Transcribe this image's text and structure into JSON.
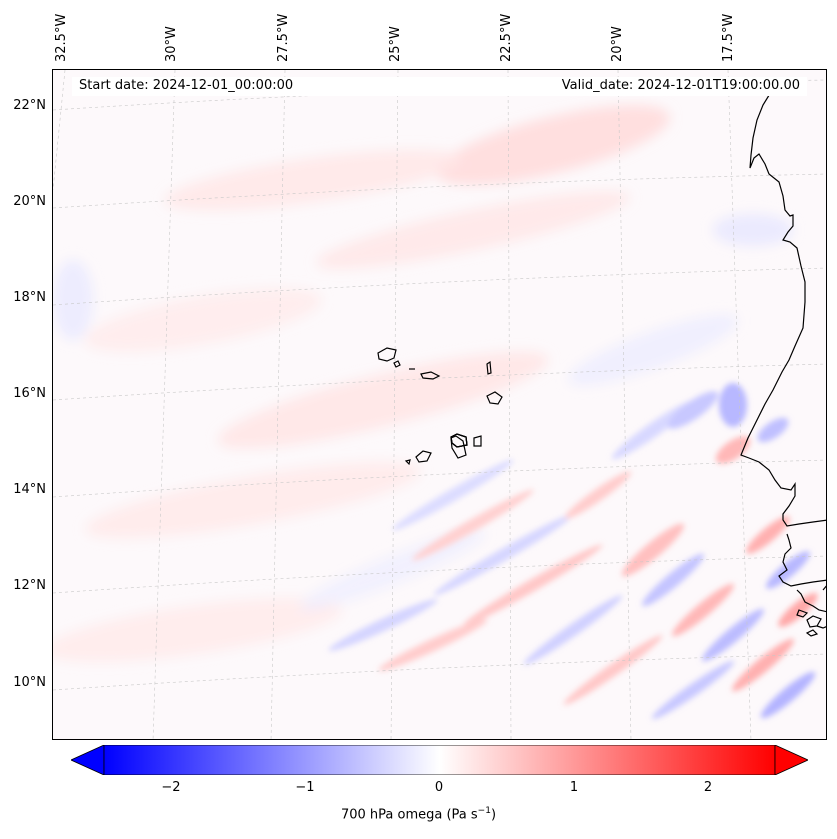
{
  "header": {
    "start_date": "Start date: 2024-12-01_00:00:00",
    "valid_date": "Valid_date: 2024-12-01T19:00:00.00"
  },
  "longitude_labels": [
    "32.5°W",
    "30°W",
    "27.5°W",
    "25°W",
    "22.5°W",
    "20°W",
    "17.5°W"
  ],
  "latitude_labels": [
    "22°N",
    "20°N",
    "18°N",
    "16°N",
    "14°N",
    "12°N",
    "10°N"
  ],
  "colorbar": {
    "ticks": [
      "−2",
      "−1",
      "0",
      "1",
      "2"
    ],
    "range": [
      -2.5,
      2.5
    ],
    "extend": "both",
    "colormap": "bwr",
    "label_prefix": "700 hPa omega (Pa s",
    "label_sup": "−1",
    "label_suffix": ")"
  },
  "colors": {
    "negative": "#0000ff",
    "zero": "#ffffff",
    "positive": "#ff0000",
    "coastline": "#000000"
  }
}
